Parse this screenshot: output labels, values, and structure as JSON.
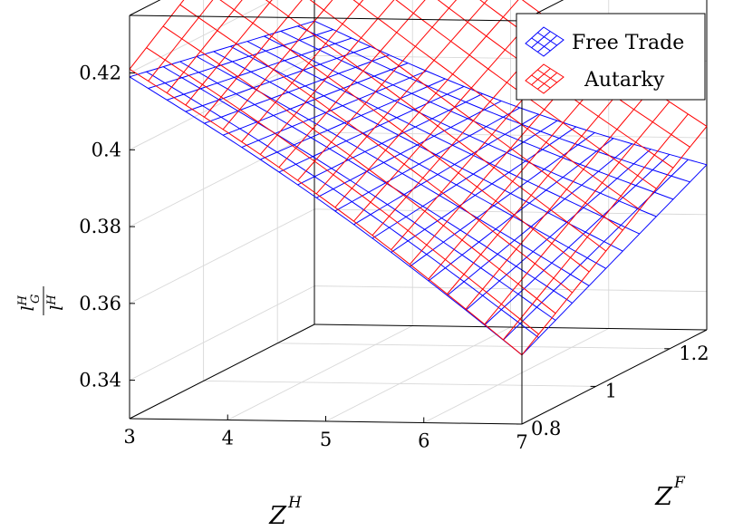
{
  "chart_data": {
    "type": "surface",
    "x": {
      "name": "Z",
      "sup": "H",
      "range": [
        3,
        7
      ],
      "ticks": [
        3,
        4,
        5,
        6,
        7
      ],
      "tick_labels": [
        "3",
        "4",
        "5",
        "6",
        "7"
      ]
    },
    "y": {
      "name": "Z",
      "sup": "F",
      "range": [
        0.8,
        1.3
      ],
      "ticks": [
        0.8,
        1.0,
        1.2
      ],
      "tick_labels": [
        "0.8",
        "1",
        "1.2"
      ]
    },
    "z": {
      "label_num": "l",
      "label_num_sup": "H",
      "label_num_sub": "G",
      "label_den": "l",
      "label_den_sup": "H",
      "range": [
        0.33,
        0.435
      ],
      "ticks": [
        0.34,
        0.36,
        0.38,
        0.4,
        0.42
      ],
      "tick_labels": [
        "0.34",
        "0.36",
        "0.38",
        "0.4",
        "0.42"
      ]
    },
    "grid": true,
    "legend_position": "top-right",
    "series": [
      {
        "name": "Free Trade",
        "color": "#0000ff",
        "corners": {
          "zh3_zf0.8": 0.419,
          "zh3_zf1.3": 0.409,
          "zh7_zf0.8": 0.348,
          "zh7_zf1.3": 0.373
        },
        "mesh": [
          21,
          11
        ]
      },
      {
        "name": "Autarky",
        "color": "#ff0000",
        "corners": {
          "zh3_zf0.8": 0.421,
          "zh3_zf1.3": 0.458,
          "zh7_zf0.8": 0.348,
          "zh7_zf1.3": 0.383
        },
        "mesh": [
          21,
          11
        ]
      }
    ]
  }
}
